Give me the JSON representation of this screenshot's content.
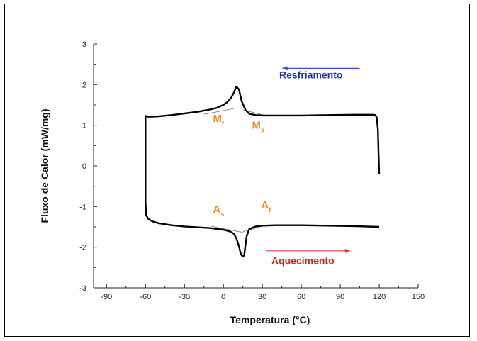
{
  "chart_data": {
    "type": "line",
    "title": "",
    "xlabel": "Temperatura (°C)",
    "ylabel": "Fluxo de Calor (mW/mg)",
    "xlim": [
      -100,
      150
    ],
    "ylim": [
      -3,
      3
    ],
    "xticks": [
      -90,
      -60,
      -30,
      0,
      30,
      60,
      90,
      120,
      150
    ],
    "yticks": [
      -3,
      -2,
      -1,
      0,
      1,
      2,
      3
    ],
    "grid": false,
    "series": [
      {
        "x": [
          -60,
          -60,
          -59.5,
          -59,
          -58,
          -55,
          -50,
          -40,
          -30,
          -20,
          -10,
          -5,
          0,
          3,
          6,
          8,
          10,
          12,
          14,
          17,
          20,
          25,
          30,
          40,
          60,
          80,
          100,
          110,
          115,
          117,
          118,
          119,
          119.5,
          120
        ],
        "y": [
          1.2,
          1.22,
          1.23,
          1.22,
          1.21,
          1.21,
          1.22,
          1.25,
          1.29,
          1.33,
          1.39,
          1.43,
          1.5,
          1.57,
          1.68,
          1.8,
          1.95,
          1.88,
          1.6,
          1.38,
          1.28,
          1.25,
          1.24,
          1.24,
          1.24,
          1.25,
          1.26,
          1.26,
          1.26,
          1.25,
          1.2,
          0.9,
          0.3,
          -0.2
        ]
      },
      {
        "x": [
          -60,
          -60,
          -59.5,
          -58,
          -55,
          -50,
          -40,
          -30,
          -20,
          -10,
          -5,
          0,
          5,
          8,
          10,
          12,
          13,
          14,
          15,
          16,
          17,
          18,
          20,
          25,
          30,
          40,
          60,
          80,
          100,
          120
        ],
        "y": [
          1.2,
          -0.9,
          -1.2,
          -1.3,
          -1.36,
          -1.41,
          -1.46,
          -1.49,
          -1.51,
          -1.53,
          -1.55,
          -1.57,
          -1.61,
          -1.67,
          -1.78,
          -1.98,
          -2.12,
          -2.2,
          -2.23,
          -2.2,
          -1.95,
          -1.72,
          -1.55,
          -1.49,
          -1.47,
          -1.46,
          -1.46,
          -1.47,
          -1.48,
          -1.5
        ]
      }
    ],
    "baselines": [
      {
        "x": [
          -15,
          8
        ],
        "y": [
          1.27,
          1.41
        ]
      },
      {
        "x": [
          15,
          35
        ],
        "y": [
          1.38,
          1.22
        ]
      },
      {
        "x": [
          -10,
          14
        ],
        "y": [
          -1.48,
          -1.63
        ]
      },
      {
        "x": [
          14,
          30
        ],
        "y": [
          -1.63,
          -1.48
        ]
      }
    ],
    "annotations": [
      {
        "main": "M",
        "sub": "f",
        "x": -8,
        "y": 1.08,
        "color": "#f08c1e"
      },
      {
        "main": "M",
        "sub": "s",
        "x": 22,
        "y": 0.92,
        "color": "#f08c1e"
      },
      {
        "main": "A",
        "sub": "s",
        "x": -8,
        "y": -1.15,
        "color": "#f08c1e"
      },
      {
        "main": "A",
        "sub": "f",
        "x": 29,
        "y": -1.05,
        "color": "#f08c1e"
      },
      {
        "main": "Resfriamento",
        "sub": "",
        "x": 43,
        "y": 2.15,
        "color": "#1e2dc8"
      },
      {
        "main": "Aquecimento",
        "sub": "",
        "x": 37,
        "y": -2.42,
        "color": "#e02020"
      }
    ],
    "arrows": [
      {
        "x": [
          105,
          45
        ],
        "y": [
          2.4,
          2.4
        ],
        "color": "#3a4ae0"
      },
      {
        "x": [
          33,
          98
        ],
        "y": [
          -2.09,
          -2.09
        ],
        "color": "#e04040"
      }
    ]
  }
}
